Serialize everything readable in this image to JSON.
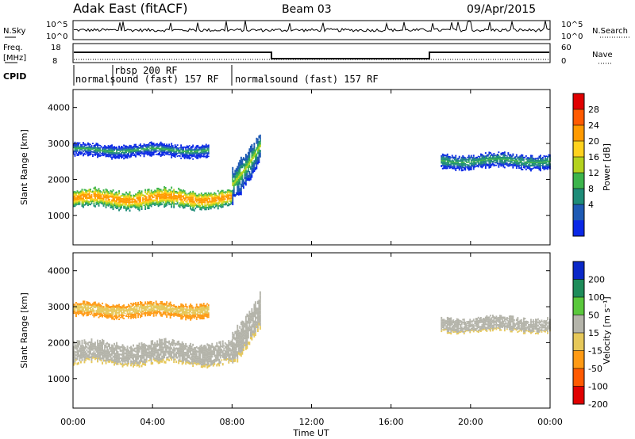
{
  "header": {
    "station": "Adak East (fitACF)",
    "beam": "Beam 03",
    "date": "09/Apr/2015"
  },
  "panels": {
    "noise": {
      "left_label": "N.Sky",
      "right_label": "N.Search",
      "tick_top": "10^5",
      "tick_bottom": "10^0",
      "right_tick_top": "10^5",
      "right_tick_bottom": "10^0"
    },
    "freq": {
      "left_label_line1": "Freq.",
      "left_label_line2": "[MHz]",
      "right_label": "Nave",
      "left_tick_top": "18",
      "left_tick_bottom": "8",
      "right_tick_top": "60",
      "right_tick_bottom": "0"
    },
    "cpid": {
      "label": "CPID",
      "segments": [
        "normalsound (fast) 157 RF",
        "rbsp 200 RF",
        "normalsound (fast) 157 RF"
      ]
    },
    "power": {
      "ylabel": "Slant Range [km]",
      "cbar_label": "Power [dB]",
      "cbar_ticks": [
        "28",
        "24",
        "20",
        "16",
        "12",
        "8",
        "4"
      ],
      "cbar_colors": [
        "#e00000",
        "#ff5a00",
        "#ff9a00",
        "#ffd21e",
        "#b4d21e",
        "#3cb44b",
        "#1e8c78",
        "#1e5ab4",
        "#0a28e6"
      ]
    },
    "velocity": {
      "ylabel": "Slant Range [km]",
      "cbar_label": "Velocity [m s⁻¹]",
      "cbar_ticks": [
        "200",
        "100",
        "50",
        "15",
        "-15",
        "-50",
        "-100",
        "-200"
      ],
      "cbar_colors": [
        "#0a28c8",
        "#1e8c5a",
        "#5ac83c",
        "#b4b4aa",
        "#e6c85a",
        "#ff9a14",
        "#ff5a00",
        "#e00000"
      ]
    }
  },
  "x_axis": {
    "label": "Time UT",
    "ticks": [
      "00:00",
      "04:00",
      "08:00",
      "12:00",
      "16:00",
      "20:00",
      "00:00"
    ]
  },
  "chart_data": [
    {
      "type": "heatmap",
      "title": "Power [dB]",
      "xlabel": "Time UT",
      "ylabel": "Slant Range [km]",
      "xlim_hours": [
        0,
        24
      ],
      "ylim_km": [
        180,
        4500
      ],
      "yticks_km": [
        1000,
        2000,
        3000,
        4000
      ],
      "zlim": [
        0,
        30
      ],
      "bands": [
        {
          "t_start": 0.0,
          "t_end": 8.0,
          "range_center_km": 1450,
          "range_halfwidth_km": 250,
          "power_db": 24
        },
        {
          "t_start": 0.0,
          "t_end": 6.8,
          "range_center_km": 2800,
          "range_halfwidth_km": 180,
          "power_db": 10
        },
        {
          "t_start": 8.0,
          "t_end": 9.4,
          "range_center_km": 2400,
          "range_halfwidth_km": 450,
          "power_db": 14
        },
        {
          "t_start": 18.5,
          "t_end": 24.0,
          "range_center_km": 2500,
          "range_halfwidth_km": 200,
          "power_db": 12
        }
      ]
    },
    {
      "type": "heatmap",
      "title": "Velocity [m s⁻¹]",
      "xlabel": "Time UT",
      "ylabel": "Slant Range [km]",
      "xlim_hours": [
        0,
        24
      ],
      "ylim_km": [
        180,
        4500
      ],
      "yticks_km": [
        1000,
        2000,
        3000,
        4000
      ],
      "zlim": [
        -250,
        250
      ],
      "bands": [
        {
          "t_start": 0.0,
          "t_end": 8.0,
          "range_center_km": 1700,
          "range_halfwidth_km": 300,
          "velocity": 0
        },
        {
          "t_start": 0.0,
          "t_end": 6.8,
          "range_center_km": 2900,
          "range_halfwidth_km": 200,
          "velocity": -40
        },
        {
          "t_start": 8.0,
          "t_end": 9.4,
          "range_center_km": 2400,
          "range_halfwidth_km": 450,
          "velocity": 0
        },
        {
          "t_start": 18.5,
          "t_end": 24.0,
          "range_center_km": 2500,
          "range_halfwidth_km": 200,
          "velocity": 0
        }
      ]
    }
  ]
}
